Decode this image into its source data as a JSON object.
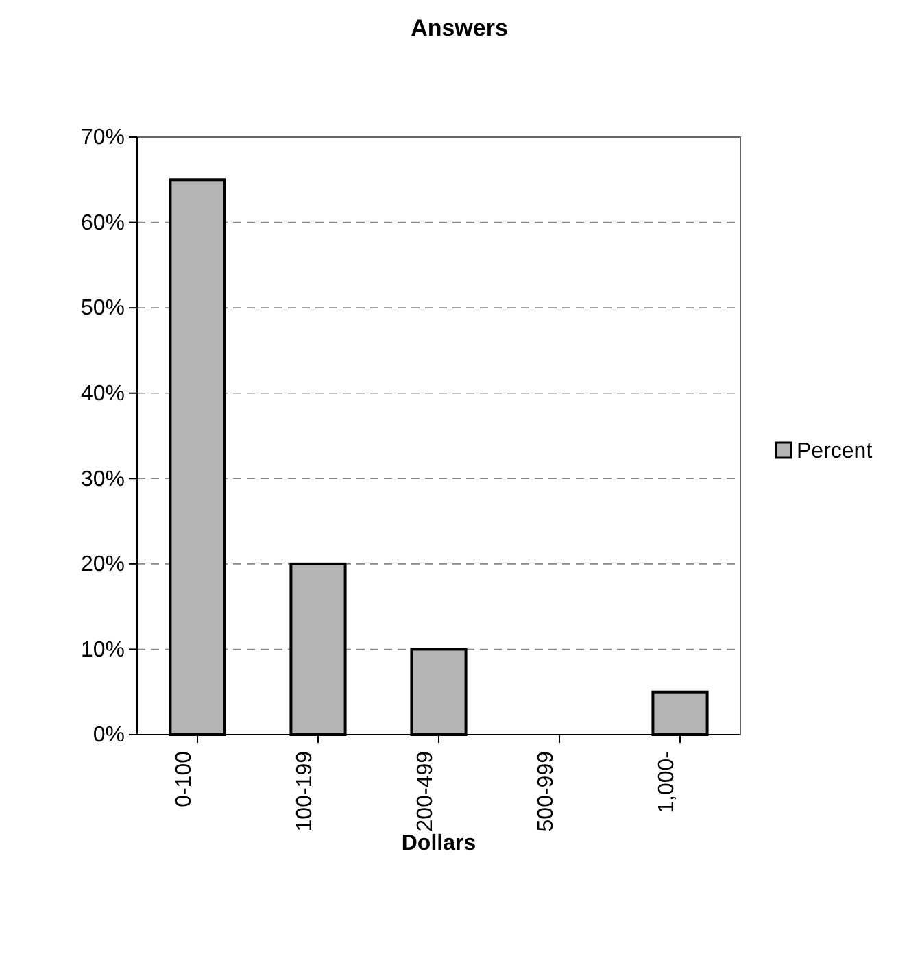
{
  "chart_data": {
    "type": "bar",
    "title": "Answers",
    "xlabel": "Dollars",
    "categories": [
      "0-100",
      "100-199",
      "200-499",
      "500-999",
      "1,000-"
    ],
    "series": [
      {
        "name": "Percent",
        "color": "#b4b4b4",
        "values": [
          65,
          20,
          10,
          0,
          5
        ]
      }
    ],
    "ylim": [
      0,
      70
    ],
    "yticks": [
      {
        "value": 0,
        "label": "0%"
      },
      {
        "value": 10,
        "label": "10%"
      },
      {
        "value": 20,
        "label": "20%"
      },
      {
        "value": 30,
        "label": "30%"
      },
      {
        "value": 40,
        "label": "40%"
      },
      {
        "value": 50,
        "label": "50%"
      },
      {
        "value": 60,
        "label": "60%"
      },
      {
        "value": 70,
        "label": "70%"
      }
    ],
    "grid": "y",
    "legend": "right"
  }
}
